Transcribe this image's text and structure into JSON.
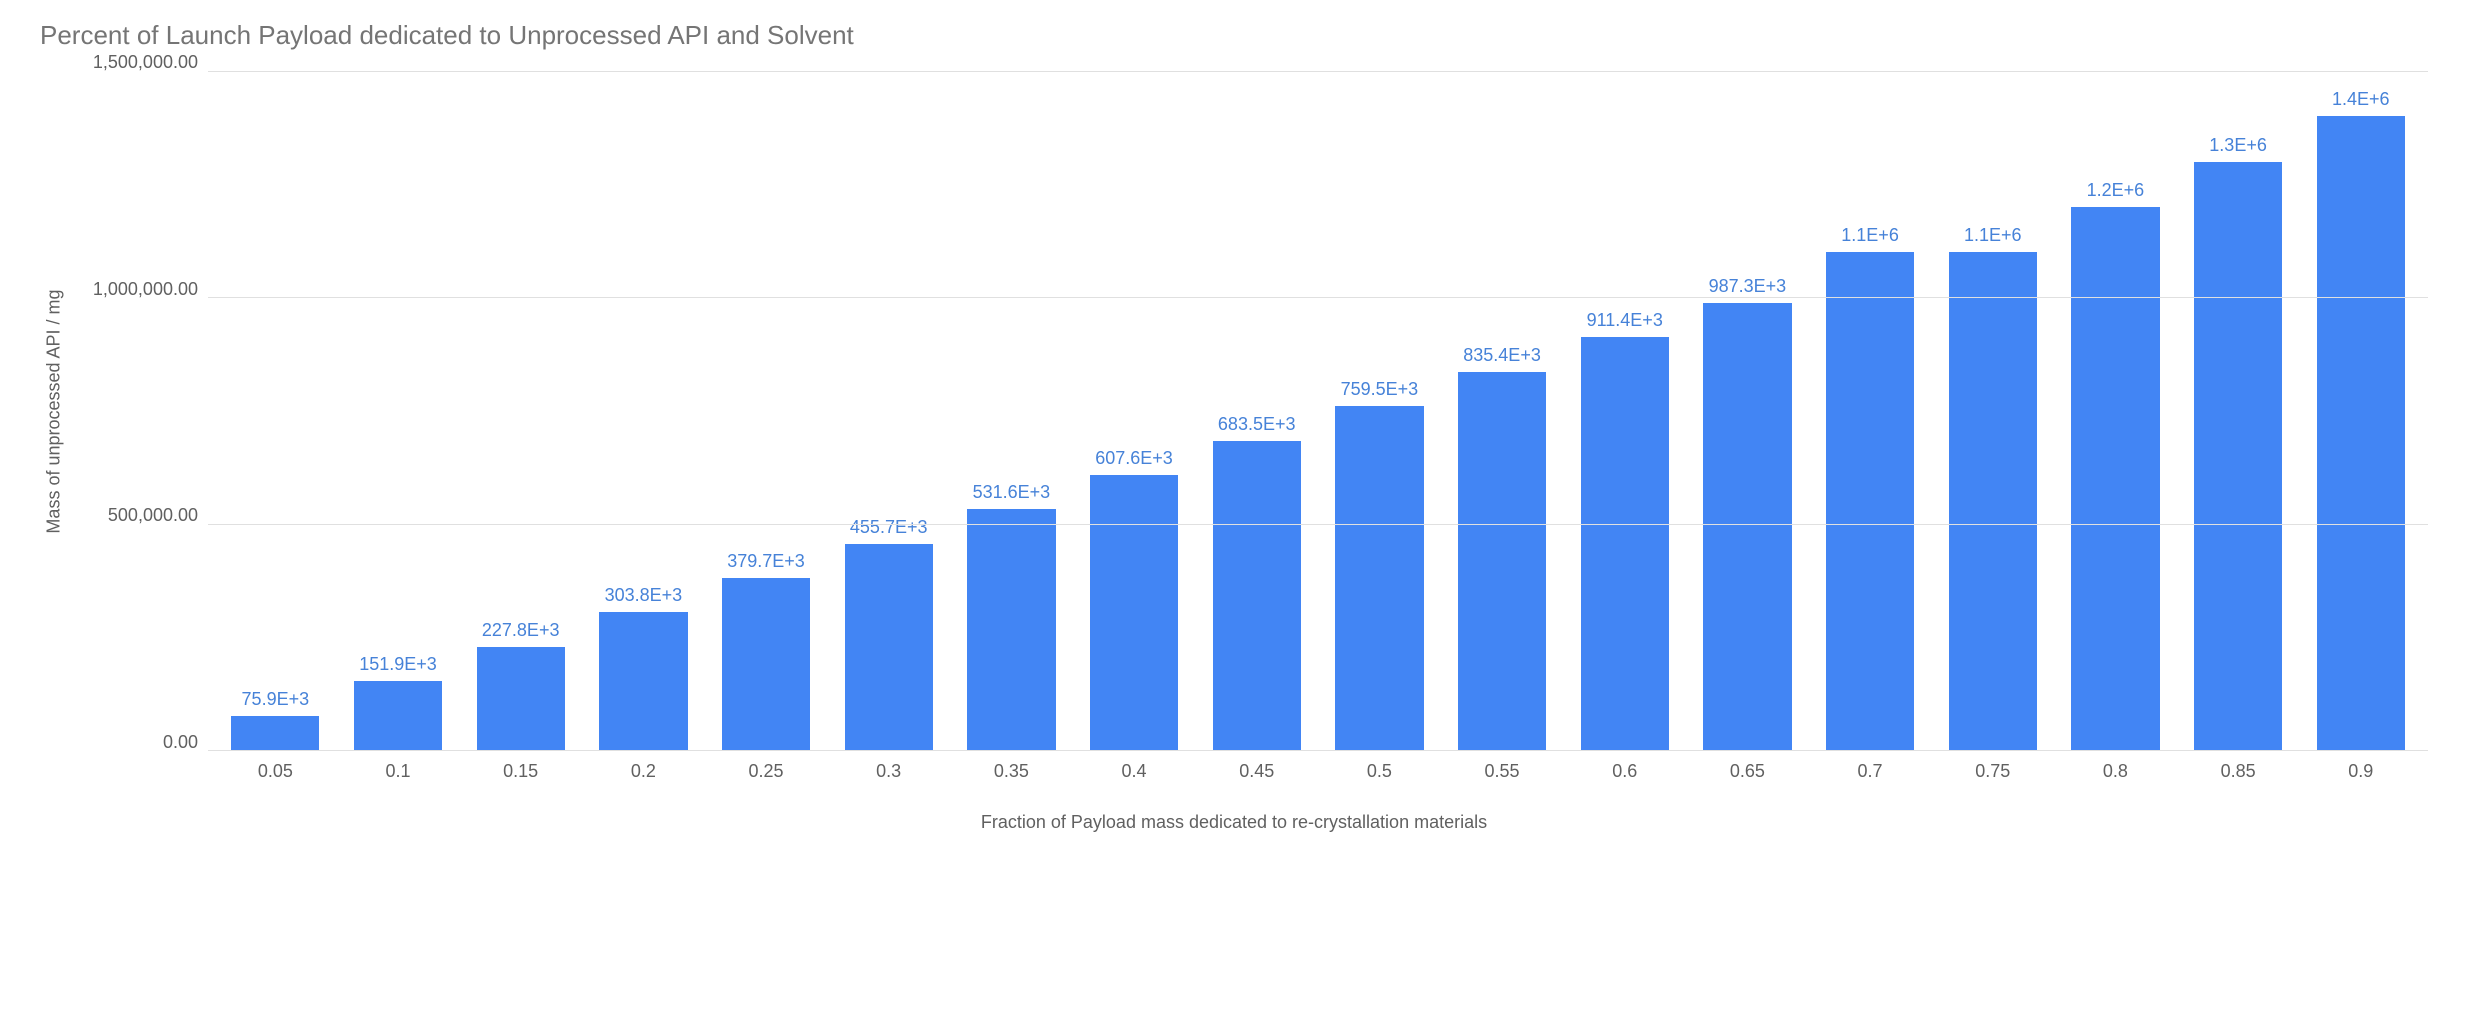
{
  "chart": {
    "type": "bar",
    "title": "Percent of Launch Payload dedicated to Unprocessed API and  Solvent",
    "title_fontsize": 26,
    "title_color": "#757575",
    "xlabel": "Fraction of Payload mass dedicated to re-crystallation materials",
    "ylabel": "Mass of unprocessed API / mg",
    "label_fontsize": 18,
    "label_color": "#606060",
    "background_color": "#ffffff",
    "grid_color": "#e0e0e0",
    "axis_color": "#bdbdbd",
    "bar_color": "#4285f4",
    "data_label_color": "#4682d8",
    "data_label_fontsize": 18,
    "bar_width": 0.72,
    "ylim": [
      0,
      1500000
    ],
    "ytick_step": 500000,
    "yticks": [
      {
        "value": 1500000,
        "label": "1,500,000.00"
      },
      {
        "value": 1000000,
        "label": "1,000,000.00"
      },
      {
        "value": 500000,
        "label": "500,000.00"
      },
      {
        "value": 0,
        "label": "0.00"
      }
    ],
    "categories": [
      "0.05",
      "0.1",
      "0.15",
      "0.2",
      "0.25",
      "0.3",
      "0.35",
      "0.4",
      "0.45",
      "0.5",
      "0.55",
      "0.6",
      "0.65",
      "0.7",
      "0.75",
      "0.8",
      "0.85",
      "0.9"
    ],
    "values": [
      75900,
      151900,
      227800,
      303800,
      379700,
      455700,
      531600,
      607600,
      683500,
      759500,
      835400,
      911400,
      987300,
      1100000,
      1100000,
      1200000,
      1300000,
      1400000
    ],
    "value_labels": [
      "75.9E+3",
      "151.9E+3",
      "227.8E+3",
      "303.8E+3",
      "379.7E+3",
      "455.7E+3",
      "531.6E+3",
      "607.6E+3",
      "683.5E+3",
      "759.5E+3",
      "835.4E+3",
      "911.4E+3",
      "987.3E+3",
      "1.1E+6",
      "1.1E+6",
      "1.2E+6",
      "1.3E+6",
      "1.4E+6"
    ]
  }
}
